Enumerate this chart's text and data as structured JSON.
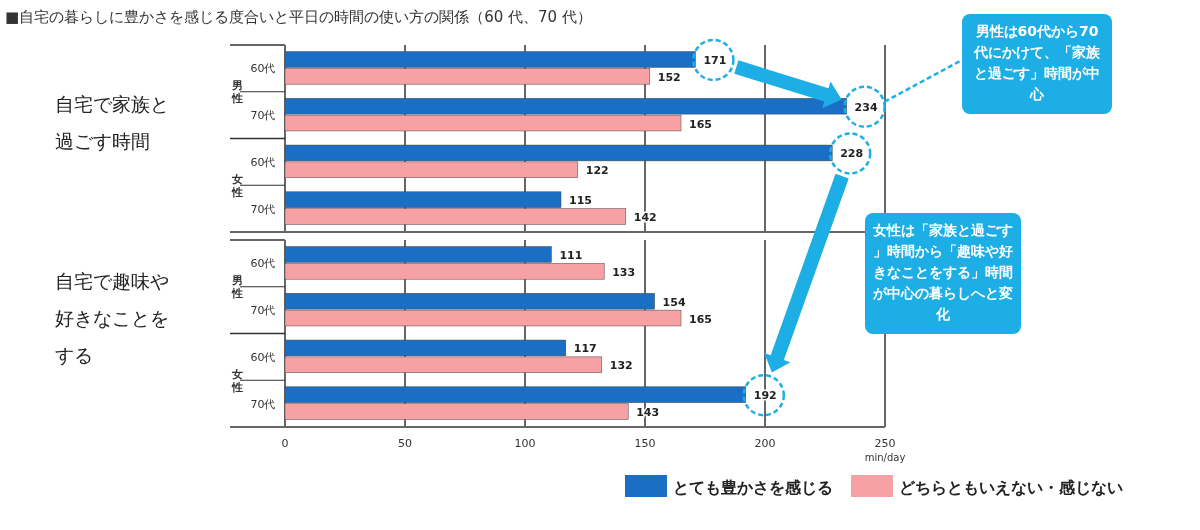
{
  "chart_data": [
    {
      "type": "bar",
      "orientation": "horizontal",
      "title": "■自宅の暮らしに豊かさを感じる度合いと平日の時間の使い方の関係（60 代、70 代）",
      "ylabel": "自宅で家族と過ごす時間",
      "categories": [
        "60代",
        "70代",
        "60代",
        "70代"
      ],
      "series": [
        {
          "color": "#1a6ec4",
          "values": [
            171,
            234,
            228,
            115
          ]
        },
        {
          "color": "#f7a1a4",
          "values": [
            152,
            165,
            122,
            142
          ]
        }
      ],
      "xlim": [
        0,
        250
      ],
      "xticks": [
        0,
        50,
        100,
        150,
        200,
        250
      ],
      "grid": "x",
      "tick_labels": "y",
      "data_labels": true,
      "legend": false,
      "annotations": [
        "男性",
        "女性",
        "男性は60代から70代にかけて、「家族と過ごす」時間が中心"
      ]
    },
    {
      "type": "bar",
      "orientation": "horizontal",
      "ylabel": "自宅で趣味や好きなことをする",
      "xlabel": "min/day",
      "categories": [
        "60代",
        "70代",
        "60代",
        "70代"
      ],
      "series": [
        {
          "name": "とても豊かさを感じる",
          "color": "#1a6ec4",
          "values": [
            111,
            154,
            117,
            192
          ]
        },
        {
          "name": "どちらともいえない・感じない",
          "color": "#f7a1a4",
          "values": [
            133,
            165,
            132,
            143
          ]
        }
      ],
      "xlim": [
        0,
        250
      ],
      "xticks": [
        0,
        50,
        100,
        150,
        200,
        250
      ],
      "grid": "x",
      "data_labels": true,
      "legend": "bottom",
      "annotations": [
        "男性",
        "女性",
        "女性は「家族と過ごす」時間から「趣味や好きなことをする」時間が中心の暮らしへと変化"
      ]
    }
  ]
}
